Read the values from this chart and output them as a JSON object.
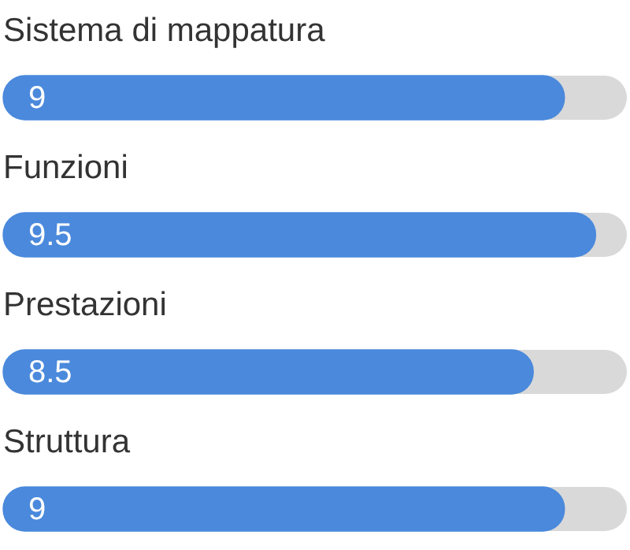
{
  "chart_data": {
    "type": "bar",
    "orientation": "horizontal",
    "categories": [
      "Sistema di mappatura",
      "Funzioni",
      "Prestazioni",
      "Struttura"
    ],
    "values": [
      9,
      9.5,
      8.5,
      9
    ],
    "color": "#4a89dc",
    "xlim": [
      0,
      10
    ],
    "data_labels": true
  }
}
